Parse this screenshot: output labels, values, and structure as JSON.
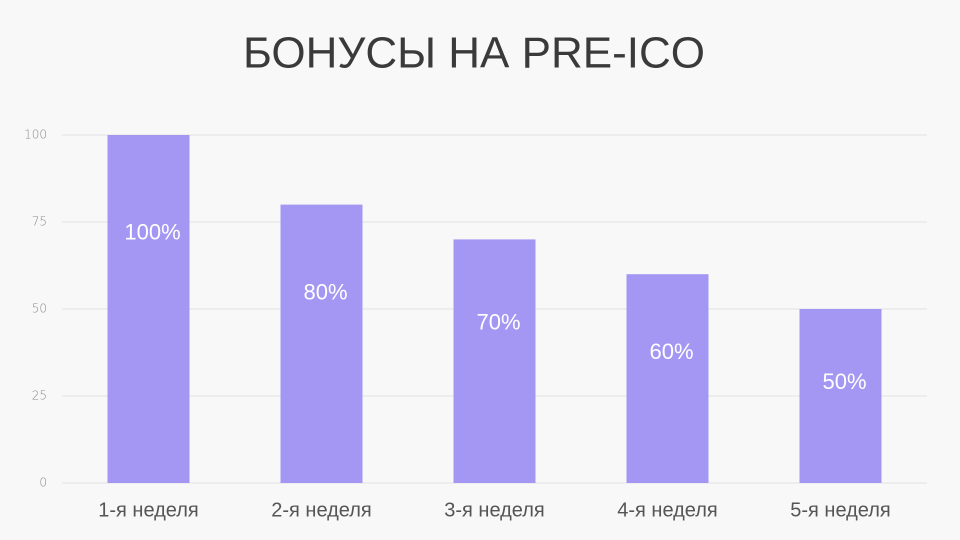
{
  "chart_data": {
    "type": "bar",
    "title": "БОНУСЫ НА PRE-ICO",
    "categories": [
      "1-я неделя",
      "2-я неделя",
      "3-я неделя",
      "4-я неделя",
      "5-я неделя"
    ],
    "values": [
      100,
      80,
      70,
      60,
      50
    ],
    "value_labels": [
      "100%",
      "80%",
      "70%",
      "60%",
      "50%"
    ],
    "color": "#a397f3",
    "ylim": [
      0,
      100
    ],
    "yticks": [
      0,
      25,
      50,
      75,
      100
    ],
    "grid": true
  }
}
